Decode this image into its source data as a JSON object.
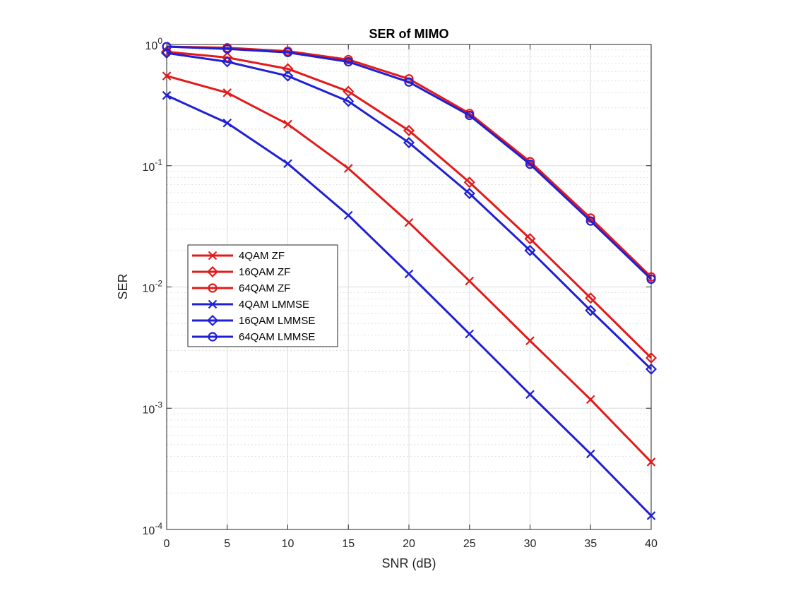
{
  "chart_data": {
    "type": "line",
    "title": "SER of MIMO",
    "xlabel": "SNR (dB)",
    "ylabel": "SER",
    "x": [
      0,
      5,
      10,
      15,
      20,
      25,
      30,
      35,
      40
    ],
    "xlim": [
      0,
      40
    ],
    "xticks": [
      0,
      5,
      10,
      15,
      20,
      25,
      30,
      35,
      40
    ],
    "ylim": [
      0.0001,
      1
    ],
    "yscale": "log",
    "yticks": [
      {
        "base": "10",
        "exp": "-4"
      },
      {
        "base": "10",
        "exp": "-3"
      },
      {
        "base": "10",
        "exp": "-2"
      },
      {
        "base": "10",
        "exp": "-1"
      },
      {
        "base": "10",
        "exp": "0"
      }
    ],
    "grid": true,
    "minor_grid": true,
    "legend_position": "center-left",
    "series": [
      {
        "name": "4QAM ZF",
        "color": "#e31a1a",
        "marker": "x",
        "values": [
          0.55,
          0.4,
          0.22,
          0.095,
          0.034,
          0.0112,
          0.0036,
          0.00118,
          0.00036
        ]
      },
      {
        "name": "16QAM ZF",
        "color": "#e31a1a",
        "marker": "diamond",
        "values": [
          0.87,
          0.78,
          0.63,
          0.41,
          0.195,
          0.073,
          0.025,
          0.0081,
          0.0026
        ]
      },
      {
        "name": "64QAM ZF",
        "color": "#e31a1a",
        "marker": "circle",
        "values": [
          0.96,
          0.94,
          0.88,
          0.75,
          0.52,
          0.27,
          0.108,
          0.037,
          0.0121
        ]
      },
      {
        "name": "4QAM LMMSE",
        "color": "#1f1fd6",
        "marker": "x",
        "values": [
          0.38,
          0.225,
          0.104,
          0.039,
          0.0128,
          0.0041,
          0.0013,
          0.00042,
          0.00013
        ]
      },
      {
        "name": "16QAM LMMSE",
        "color": "#1f1fd6",
        "marker": "diamond",
        "values": [
          0.85,
          0.72,
          0.55,
          0.34,
          0.155,
          0.059,
          0.02,
          0.0064,
          0.0021
        ]
      },
      {
        "name": "64QAM LMMSE",
        "color": "#1f1fd6",
        "marker": "circle",
        "values": [
          0.96,
          0.92,
          0.86,
          0.72,
          0.49,
          0.26,
          0.103,
          0.035,
          0.0116
        ]
      }
    ]
  }
}
